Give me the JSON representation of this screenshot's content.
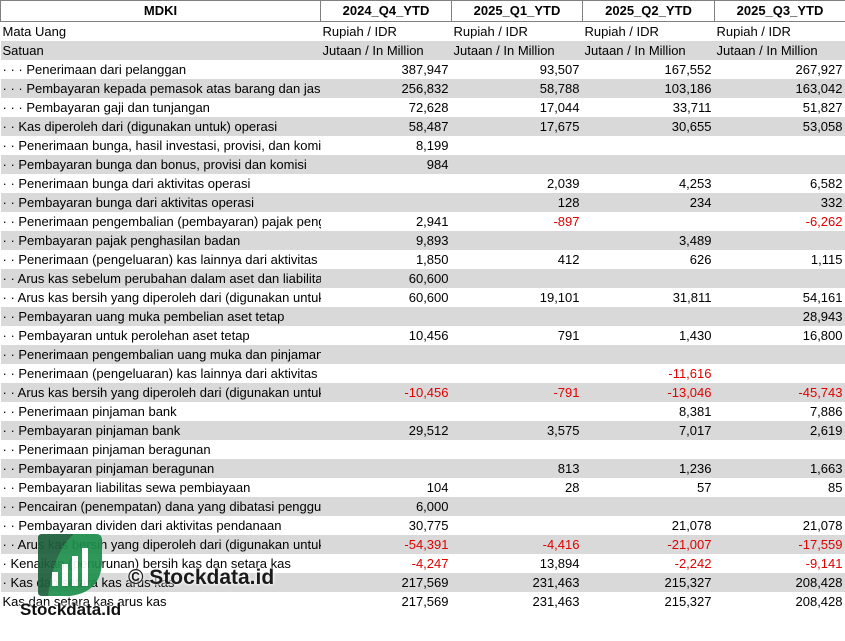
{
  "header": {
    "title": "MDKI",
    "periods": [
      "2024_Q4_YTD",
      "2025_Q1_YTD",
      "2025_Q2_YTD",
      "2025_Q3_YTD"
    ]
  },
  "meta_rows": [
    {
      "label": "Mata Uang",
      "values": [
        "Rupiah / IDR",
        "Rupiah / IDR",
        "Rupiah / IDR",
        "Rupiah / IDR"
      ]
    },
    {
      "label": "Satuan",
      "values": [
        "Jutaan / In Million",
        "Jutaan / In Million",
        "Jutaan / In Million",
        "Jutaan / In Million"
      ]
    }
  ],
  "rows": [
    {
      "indent": "· · · ",
      "label": "Penerimaan dari pelanggan",
      "values": [
        "387,947",
        "93,507",
        "167,552",
        "267,927"
      ]
    },
    {
      "indent": "· · · ",
      "label": "Pembayaran kepada pemasok atas barang dan jasa",
      "values": [
        "256,832",
        "58,788",
        "103,186",
        "163,042"
      ]
    },
    {
      "indent": "· · · ",
      "label": "Pembayaran gaji dan tunjangan",
      "values": [
        "72,628",
        "17,044",
        "33,711",
        "51,827"
      ]
    },
    {
      "indent": "· · ",
      "label": "Kas diperoleh dari (digunakan untuk) operasi",
      "values": [
        "58,487",
        "17,675",
        "30,655",
        "53,058"
      ]
    },
    {
      "indent": "· · ",
      "label": "Penerimaan bunga, hasil investasi, provisi, dan komisi",
      "values": [
        "8,199",
        "",
        "",
        ""
      ]
    },
    {
      "indent": "· · ",
      "label": "Pembayaran bunga dan bonus, provisi dan komisi",
      "values": [
        "984",
        "",
        "",
        ""
      ]
    },
    {
      "indent": "· · ",
      "label": "Penerimaan bunga dari aktivitas operasi",
      "values": [
        "",
        "2,039",
        "4,253",
        "6,582"
      ]
    },
    {
      "indent": "· · ",
      "label": "Pembayaran bunga dari aktivitas operasi",
      "values": [
        "",
        "128",
        "234",
        "332"
      ]
    },
    {
      "indent": "· · ",
      "label": "Penerimaan pengembalian (pembayaran) pajak penghasilan",
      "values": [
        "2,941",
        "-897",
        "",
        "-6,262"
      ]
    },
    {
      "indent": "· · ",
      "label": "Pembayaran pajak penghasilan badan",
      "values": [
        "9,893",
        "",
        "3,489",
        ""
      ]
    },
    {
      "indent": "· · ",
      "label": "Penerimaan (pengeluaran) kas lainnya dari aktivitas operasi",
      "values": [
        "1,850",
        "412",
        "626",
        "1,115"
      ]
    },
    {
      "indent": "· · ",
      "label": "Arus kas sebelum perubahan dalam aset dan liabilitas",
      "values": [
        "60,600",
        "",
        "",
        ""
      ]
    },
    {
      "indent": "· · ",
      "label": "Arus kas bersih yang diperoleh dari (digunakan untuk) aktivitas operasi",
      "values": [
        "60,600",
        "19,101",
        "31,811",
        "54,161"
      ]
    },
    {
      "indent": "· · ",
      "label": "Pembayaran uang muka pembelian aset tetap",
      "values": [
        "",
        "",
        "",
        "28,943"
      ]
    },
    {
      "indent": "· · ",
      "label": "Pembayaran untuk perolehan aset tetap",
      "values": [
        "10,456",
        "791",
        "1,430",
        "16,800"
      ]
    },
    {
      "indent": "· · ",
      "label": "Penerimaan pengembalian uang muka dan pinjaman diberikan kepada pihak lain",
      "values": [
        "",
        "",
        "",
        ""
      ]
    },
    {
      "indent": "· · ",
      "label": "Penerimaan (pengeluaran) kas lainnya dari aktivitas investasi",
      "values": [
        "",
        "",
        "-11,616",
        ""
      ]
    },
    {
      "indent": "· · ",
      "label": "Arus kas bersih yang diperoleh dari (digunakan untuk) aktivitas investasi",
      "values": [
        "-10,456",
        "-791",
        "-13,046",
        "-45,743"
      ]
    },
    {
      "indent": "· · ",
      "label": "Penerimaan pinjaman bank",
      "values": [
        "",
        "",
        "8,381",
        "7,886"
      ]
    },
    {
      "indent": "· · ",
      "label": "Pembayaran pinjaman bank",
      "values": [
        "29,512",
        "3,575",
        "7,017",
        "2,619"
      ]
    },
    {
      "indent": "· · ",
      "label": "Penerimaan pinjaman beragunan",
      "values": [
        "",
        "",
        "",
        ""
      ]
    },
    {
      "indent": "· · ",
      "label": "Pembayaran pinjaman beragunan",
      "values": [
        "",
        "813",
        "1,236",
        "1,663"
      ]
    },
    {
      "indent": "· · ",
      "label": "Pembayaran liabilitas sewa pembiayaan",
      "values": [
        "104",
        "28",
        "57",
        "85"
      ]
    },
    {
      "indent": "· · ",
      "label": "Pencairan (penempatan) dana yang dibatasi penggunaannya",
      "values": [
        "6,000",
        "",
        "",
        ""
      ]
    },
    {
      "indent": "· · ",
      "label": "Pembayaran dividen dari aktivitas pendanaan",
      "values": [
        "30,775",
        "",
        "21,078",
        "21,078"
      ]
    },
    {
      "indent": "· · ",
      "label": "Arus kas bersih yang diperoleh dari (digunakan untuk) aktivitas pendanaan",
      "values": [
        "-54,391",
        "-4,416",
        "-21,007",
        "-17,559"
      ]
    },
    {
      "indent": "· ",
      "label": "Kenaikan (penurunan) bersih kas dan setara kas",
      "values": [
        "-4,247",
        "13,894",
        "-2,242",
        "-9,141"
      ]
    },
    {
      "indent": "· ",
      "label": "Kas dan setara kas arus kas",
      "values": [
        "217,569",
        "231,463",
        "215,327",
        "208,428"
      ]
    },
    {
      "indent": "",
      "label": "Kas dan setara kas arus kas",
      "values": [
        "217,569",
        "231,463",
        "215,327",
        "208,428"
      ]
    }
  ],
  "watermark": {
    "text": "© Stockdata.id",
    "brand": "Stockdata.id",
    "logo_icon": "stockdata-logo-icon"
  },
  "colors": {
    "stripe": "#d9d9d9",
    "negative": "#e00000",
    "border": "#808080",
    "logo_green": "#1f8f4e",
    "logo_dark": "#1b3a2e"
  }
}
